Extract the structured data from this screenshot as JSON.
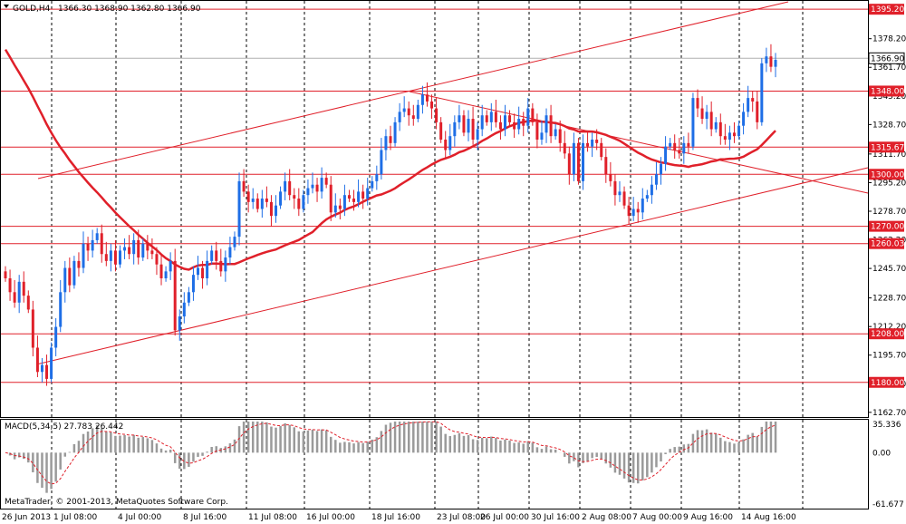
{
  "header": {
    "symbol": "GOLD,H4",
    "ohlc": "1366.30 1368.90 1362.80 1366.90"
  },
  "macd": {
    "label": "MACD(5,34,5) 27.783 26.442",
    "ticks": [
      "35.336",
      "0.00",
      "-61.677"
    ],
    "range": [
      -61.677,
      35.336
    ]
  },
  "copyright": "MetaTrader, © 2001-2013, MetaQuotes Software Corp.",
  "colors": {
    "bull": "#1e6ee6",
    "bear": "#e0202a",
    "level": "#e0202a",
    "ma": "#e0202a",
    "grid": "#000000",
    "histogram": "#9a9a9a"
  },
  "chart_data": {
    "type": "candlestick",
    "symbol": "GOLD",
    "timeframe": "H4",
    "ylim": [
      1160,
      1400
    ],
    "y_ticks": [
      "1378.20",
      "1361.70",
      "1345.20",
      "1328.70",
      "1311.70",
      "1295.20",
      "1278.70",
      "1262.20",
      "1245.70",
      "1228.70",
      "1212.20",
      "1195.70",
      "1179.20",
      "1162.70"
    ],
    "x_ticks": [
      "26 Jun 2013",
      "1 Jul 08:00",
      "4 Jul 00:00",
      "8 Jul 16:00",
      "11 Jul 08:00",
      "16 Jul 00:00",
      "18 Jul 16:00",
      "23 Jul 08:00",
      "26 Jul 00:00",
      "30 Jul 16:00",
      "2 Aug 08:00",
      "7 Aug 00:00",
      "9 Aug 16:00",
      "14 Aug 16:00"
    ],
    "levels": [
      "1395.20",
      "1348.00",
      "1315.67",
      "1300.00",
      "1270.00",
      "1260.03",
      "1208.00",
      "1180.00"
    ],
    "current_price": "1366.90",
    "closes": [
      1240,
      1232,
      1226,
      1238,
      1230,
      1222,
      1200,
      1186,
      1190,
      1182,
      1200,
      1212,
      1232,
      1246,
      1236,
      1250,
      1246,
      1260,
      1256,
      1262,
      1266,
      1254,
      1250,
      1256,
      1248,
      1256,
      1258,
      1254,
      1262,
      1252,
      1260,
      1256,
      1254,
      1248,
      1240,
      1244,
      1250,
      1210,
      1218,
      1226,
      1232,
      1242,
      1246,
      1240,
      1250,
      1256,
      1250,
      1244,
      1252,
      1258,
      1264,
      1296,
      1290,
      1284,
      1286,
      1280,
      1286,
      1284,
      1276,
      1282,
      1290,
      1296,
      1288,
      1286,
      1280,
      1288,
      1292,
      1294,
      1290,
      1298,
      1294,
      1278,
      1282,
      1280,
      1288,
      1286,
      1284,
      1290,
      1286,
      1292,
      1296,
      1300,
      1314,
      1322,
      1318,
      1330,
      1336,
      1338,
      1334,
      1332,
      1340,
      1346,
      1342,
      1338,
      1330,
      1320,
      1314,
      1322,
      1330,
      1334,
      1324,
      1332,
      1320,
      1326,
      1334,
      1330,
      1336,
      1330,
      1326,
      1334,
      1330,
      1326,
      1332,
      1328,
      1338,
      1330,
      1320,
      1324,
      1334,
      1322,
      1326,
      1318,
      1312,
      1300,
      1318,
      1296,
      1318,
      1316,
      1320,
      1318,
      1310,
      1300,
      1296,
      1288,
      1290,
      1282,
      1276,
      1280,
      1278,
      1286,
      1288,
      1294,
      1300,
      1306,
      1316,
      1318,
      1314,
      1312,
      1318,
      1316,
      1344,
      1338,
      1332,
      1336,
      1326,
      1330,
      1322,
      1320,
      1324,
      1322,
      1328,
      1336,
      1344,
      1342,
      1330,
      1364,
      1368,
      1362,
      1366
    ]
  }
}
